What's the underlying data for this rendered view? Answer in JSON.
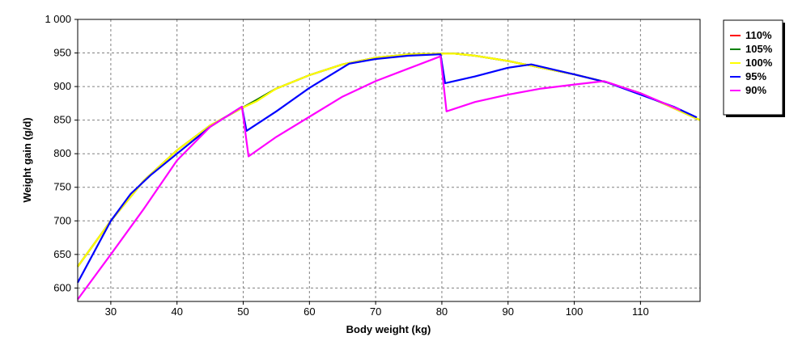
{
  "chart_data": {
    "type": "line",
    "title": "",
    "xlabel": "Body weight (kg)",
    "ylabel": "Weight gain (g/d)",
    "xlim": [
      25,
      119
    ],
    "ylim": [
      580,
      1000
    ],
    "x_ticks": [
      30,
      40,
      50,
      60,
      70,
      80,
      90,
      100,
      110
    ],
    "y_ticks": [
      600,
      650,
      700,
      750,
      800,
      850,
      900,
      950,
      1000
    ],
    "x_tick_labels": [
      "30",
      "40",
      "50",
      "60",
      "70",
      "80",
      "90",
      "100",
      "110"
    ],
    "y_tick_labels": [
      "600",
      "650",
      "700",
      "750",
      "800",
      "850",
      "900",
      "950",
      "1 000"
    ],
    "grid": true,
    "legend_position": "right",
    "series": [
      {
        "name": "110%",
        "color": "#ff0000",
        "x": [
          25,
          30,
          35,
          40,
          45,
          49.8,
          52,
          55,
          60,
          65,
          70,
          75,
          79.8,
          82,
          85,
          90,
          95,
          100,
          105,
          110,
          115,
          119
        ],
        "y": [
          632,
          700,
          760,
          805,
          842,
          868,
          880,
          897,
          917,
          933,
          943,
          948,
          949,
          949,
          946,
          938,
          928,
          918,
          906,
          890,
          868,
          850
        ]
      },
      {
        "name": "105%",
        "color": "#008000",
        "x": [
          25,
          30,
          35,
          40,
          45,
          49.8,
          52,
          55,
          60,
          65,
          70,
          75,
          79.8,
          82,
          85,
          90,
          95,
          100,
          105,
          110,
          115,
          119
        ],
        "y": [
          632,
          700,
          760,
          805,
          842,
          868,
          880,
          897,
          917,
          933,
          943,
          948,
          949,
          949,
          946,
          938,
          928,
          918,
          906,
          890,
          868,
          850
        ]
      },
      {
        "name": "100%",
        "color": "#ffff00",
        "x": [
          25,
          30,
          35,
          40,
          45,
          49.8,
          52,
          55,
          60,
          65,
          70,
          75,
          79.8,
          82,
          85,
          90,
          95,
          100,
          105,
          110,
          115,
          119
        ],
        "y": [
          632,
          700,
          760,
          805,
          842,
          868,
          878,
          897,
          917,
          933,
          943,
          948,
          949,
          949,
          946,
          938,
          928,
          918,
          906,
          890,
          868,
          850
        ]
      },
      {
        "name": "95%",
        "color": "#0000ff",
        "x": [
          25,
          30,
          33,
          36,
          40,
          45,
          49.8,
          50.5,
          55,
          60,
          66,
          70,
          75,
          79.8,
          80.5,
          85,
          90,
          93.5,
          100,
          105,
          110,
          115,
          118.5
        ],
        "y": [
          608,
          700,
          740,
          768,
          800,
          840,
          870,
          834,
          863,
          898,
          934,
          941,
          946,
          948,
          905,
          915,
          928,
          933,
          918,
          906,
          888,
          870,
          854
        ]
      },
      {
        "name": "90%",
        "color": "#ff00ff",
        "x": [
          25,
          30,
          35,
          40,
          45,
          49.8,
          50.8,
          55,
          60,
          65,
          70,
          75,
          79.8,
          80.7,
          85,
          90,
          95,
          100,
          104.5,
          110,
          116
        ],
        "y": [
          583,
          650,
          718,
          790,
          840,
          870,
          796,
          825,
          855,
          885,
          908,
          927,
          945,
          863,
          877,
          888,
          897,
          903,
          908,
          890,
          865
        ]
      }
    ]
  }
}
